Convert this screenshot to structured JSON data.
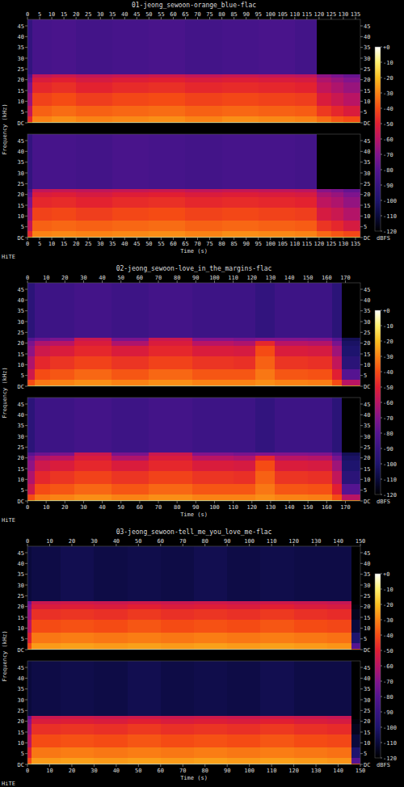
{
  "chart_data": [
    {
      "type": "spectrogram",
      "title": "01-jeong_sewoon-orange_blue-flac",
      "xlabel": "Time (s)",
      "ylabel": "Frequency (kHz)",
      "annotations": [
        "HiTE"
      ],
      "xlim": [
        0,
        137
      ],
      "xticks": [
        0,
        5,
        10,
        15,
        20,
        25,
        30,
        35,
        40,
        45,
        50,
        55,
        60,
        65,
        70,
        75,
        80,
        85,
        90,
        95,
        100,
        105,
        110,
        115,
        120,
        125,
        130,
        135
      ],
      "ylim": [
        0,
        48
      ],
      "yticks": [
        {
          "value": 0,
          "label": "DC"
        },
        5,
        10,
        15,
        20,
        25,
        30,
        35,
        40,
        45
      ],
      "colorbar": {
        "lim": [
          -120,
          0
        ],
        "ticks": [
          {
            "value": 0,
            "label": "+0"
          },
          -10,
          -20,
          -30,
          -40,
          -50,
          -60,
          -70,
          -80,
          -90,
          -100,
          -110,
          -120
        ],
        "label": "dBFS"
      },
      "x_bins": [
        0,
        2,
        10,
        20,
        35,
        50,
        65,
        80,
        95,
        110,
        119,
        125,
        130,
        137
      ],
      "y_bins": [
        0,
        0.5,
        3,
        8,
        14,
        19,
        21,
        22.5,
        48
      ],
      "cells": [
        [
          [
            -20,
            -48,
            -58,
            -66,
            -72,
            -78,
            -84,
            -92
          ],
          [
            -8,
            -30,
            -36,
            -42,
            -48,
            -52,
            -58,
            -85
          ],
          [
            -8,
            -28,
            -34,
            -40,
            -46,
            -50,
            -56,
            -84
          ],
          [
            -8,
            -30,
            -36,
            -43,
            -49,
            -53,
            -58,
            -86
          ],
          [
            -7,
            -29,
            -35,
            -41,
            -47,
            -51,
            -57,
            -85
          ],
          [
            -8,
            -28,
            -34,
            -40,
            -46,
            -50,
            -56,
            -84
          ],
          [
            -8,
            -30,
            -36,
            -42,
            -48,
            -52,
            -58,
            -86
          ],
          [
            -7,
            -28,
            -35,
            -41,
            -47,
            -51,
            -57,
            -85
          ],
          [
            -8,
            -29,
            -36,
            -42,
            -48,
            -52,
            -58,
            -84
          ],
          [
            -8,
            -30,
            -37,
            -43,
            -49,
            -53,
            -59,
            -86
          ],
          [
            -12,
            -34,
            -44,
            -52,
            -58,
            -62,
            -68,
            -120
          ],
          [
            -14,
            -38,
            -48,
            -56,
            -62,
            -66,
            -72,
            -120
          ],
          [
            -16,
            -40,
            -52,
            -60,
            -66,
            -70,
            -76,
            -120
          ]
        ],
        [
          [
            -20,
            -48,
            -58,
            -66,
            -72,
            -78,
            -84,
            -92
          ],
          [
            -8,
            -30,
            -36,
            -42,
            -48,
            -52,
            -58,
            -85
          ],
          [
            -8,
            -29,
            -35,
            -41,
            -47,
            -51,
            -57,
            -85
          ],
          [
            -8,
            -30,
            -36,
            -43,
            -49,
            -53,
            -58,
            -86
          ],
          [
            -7,
            -29,
            -35,
            -41,
            -47,
            -51,
            -57,
            -84
          ],
          [
            -8,
            -28,
            -34,
            -40,
            -46,
            -50,
            -56,
            -85
          ],
          [
            -8,
            -30,
            -36,
            -42,
            -48,
            -52,
            -58,
            -86
          ],
          [
            -7,
            -28,
            -35,
            -41,
            -47,
            -51,
            -57,
            -85
          ],
          [
            -8,
            -29,
            -36,
            -42,
            -48,
            -52,
            -58,
            -85
          ],
          [
            -8,
            -30,
            -37,
            -43,
            -49,
            -53,
            -59,
            -86
          ],
          [
            -12,
            -35,
            -45,
            -53,
            -59,
            -63,
            -69,
            -120
          ],
          [
            -14,
            -38,
            -48,
            -56,
            -62,
            -66,
            -72,
            -120
          ],
          [
            -16,
            -41,
            -53,
            -61,
            -67,
            -71,
            -77,
            -120
          ]
        ]
      ]
    },
    {
      "type": "spectrogram",
      "title": "02-jeong_sewoon-love_in_the_margins-flac",
      "xlabel": "Time (s)",
      "ylabel": "Frequency (kHz)",
      "annotations": [
        "HiTE"
      ],
      "xlim": [
        0,
        178
      ],
      "xticks": [
        0,
        10,
        20,
        30,
        40,
        50,
        60,
        70,
        80,
        90,
        100,
        110,
        120,
        130,
        140,
        150,
        160,
        170
      ],
      "ylim": [
        0,
        48
      ],
      "yticks": [
        {
          "value": 0,
          "label": "DC"
        },
        5,
        10,
        15,
        20,
        25,
        30,
        35,
        40,
        45
      ],
      "colorbar": {
        "lim": [
          -120,
          0
        ],
        "ticks": [
          {
            "value": 0,
            "label": "+0"
          },
          -10,
          -20,
          -30,
          -40,
          -50,
          -60,
          -70,
          -80,
          -90,
          -100,
          -110,
          -120
        ],
        "label": "dBFS"
      },
      "x_bins": [
        0,
        4,
        12,
        25,
        45,
        65,
        88,
        110,
        122,
        132,
        150,
        163,
        168,
        178
      ],
      "y_bins": [
        0,
        0.5,
        3,
        8,
        14,
        19,
        21,
        22.5,
        48
      ],
      "cells": [
        [
          [
            -15,
            -40,
            -55,
            -62,
            -68,
            -72,
            -80,
            -95
          ],
          [
            -10,
            -32,
            -40,
            -48,
            -55,
            -62,
            -75,
            -88
          ],
          [
            -8,
            -30,
            -38,
            -45,
            -52,
            -60,
            -72,
            -88
          ],
          [
            -8,
            -28,
            -35,
            -42,
            -48,
            -52,
            -56,
            -86
          ],
          [
            -8,
            -30,
            -38,
            -45,
            -52,
            -62,
            -72,
            -88
          ],
          [
            -8,
            -28,
            -35,
            -42,
            -48,
            -52,
            -56,
            -86
          ],
          [
            -8,
            -30,
            -38,
            -45,
            -52,
            -60,
            -70,
            -88
          ],
          [
            -8,
            -30,
            -38,
            -46,
            -53,
            -62,
            -72,
            -88
          ],
          [
            -6,
            -28,
            -32,
            -36,
            -40,
            -48,
            -70,
            -92
          ],
          [
            -8,
            -30,
            -38,
            -45,
            -52,
            -60,
            -70,
            -88
          ],
          [
            -8,
            -31,
            -39,
            -46,
            -53,
            -61,
            -71,
            -88
          ],
          [
            -12,
            -40,
            -50,
            -58,
            -65,
            -72,
            -80,
            -95
          ],
          [
            -25,
            -60,
            -80,
            -95,
            -100,
            -102,
            -105,
            -120
          ]
        ],
        [
          [
            -15,
            -40,
            -55,
            -62,
            -68,
            -72,
            -80,
            -95
          ],
          [
            -10,
            -32,
            -40,
            -48,
            -55,
            -62,
            -75,
            -88
          ],
          [
            -8,
            -30,
            -38,
            -45,
            -52,
            -60,
            -72,
            -88
          ],
          [
            -8,
            -28,
            -35,
            -42,
            -48,
            -52,
            -56,
            -86
          ],
          [
            -8,
            -30,
            -38,
            -45,
            -52,
            -62,
            -72,
            -88
          ],
          [
            -8,
            -28,
            -35,
            -42,
            -48,
            -52,
            -56,
            -86
          ],
          [
            -8,
            -30,
            -38,
            -45,
            -52,
            -60,
            -70,
            -88
          ],
          [
            -8,
            -30,
            -38,
            -46,
            -53,
            -62,
            -72,
            -88
          ],
          [
            -6,
            -28,
            -32,
            -36,
            -40,
            -48,
            -70,
            -92
          ],
          [
            -8,
            -30,
            -38,
            -45,
            -52,
            -60,
            -70,
            -88
          ],
          [
            -8,
            -31,
            -39,
            -46,
            -53,
            -61,
            -71,
            -88
          ],
          [
            -12,
            -40,
            -50,
            -58,
            -65,
            -72,
            -80,
            -95
          ],
          [
            -25,
            -60,
            -80,
            -95,
            -100,
            -102,
            -105,
            -120
          ]
        ]
      ]
    },
    {
      "type": "spectrogram",
      "title": "03-jeong_sewoon-tell_me_you_love_me-flac",
      "xlabel": "Time (s)",
      "ylabel": "Frequency (kHz)",
      "annotations": [
        "HiTE"
      ],
      "xlim": [
        0,
        150
      ],
      "xticks": [
        0,
        10,
        20,
        30,
        40,
        50,
        60,
        70,
        80,
        90,
        100,
        110,
        120,
        130,
        140,
        150
      ],
      "ylim": [
        0,
        48
      ],
      "yticks": [
        {
          "value": 0,
          "label": "DC"
        },
        5,
        10,
        15,
        20,
        25,
        30,
        35,
        40,
        45
      ],
      "colorbar": {
        "lim": [
          -120,
          0
        ],
        "ticks": [
          {
            "value": 0,
            "label": "+0"
          },
          -10,
          -20,
          -30,
          -40,
          -50,
          -60,
          -70,
          -80,
          -90,
          -100,
          -110,
          -120
        ],
        "label": "dBFS"
      },
      "x_bins": [
        0,
        2,
        15,
        30,
        45,
        60,
        75,
        90,
        105,
        120,
        135,
        146,
        150
      ],
      "y_bins": [
        0,
        0.5,
        3,
        8,
        14,
        19,
        21,
        22.5,
        48
      ],
      "cells": [
        [
          [
            -15,
            -40,
            -50,
            -60,
            -66,
            -70,
            -76,
            -110
          ],
          [
            -6,
            -26,
            -32,
            -40,
            -46,
            -52,
            -56,
            -108
          ],
          [
            -6,
            -25,
            -31,
            -39,
            -45,
            -51,
            -55,
            -106
          ],
          [
            -6,
            -26,
            -32,
            -40,
            -46,
            -52,
            -56,
            -108
          ],
          [
            -5,
            -25,
            -31,
            -38,
            -44,
            -50,
            -55,
            -107
          ],
          [
            -6,
            -26,
            -32,
            -40,
            -46,
            -52,
            -56,
            -108
          ],
          [
            -6,
            -25,
            -31,
            -39,
            -45,
            -51,
            -55,
            -106
          ],
          [
            -6,
            -26,
            -32,
            -40,
            -46,
            -52,
            -56,
            -108
          ],
          [
            -5,
            -25,
            -31,
            -38,
            -44,
            -50,
            -55,
            -107
          ],
          [
            -6,
            -26,
            -32,
            -40,
            -46,
            -52,
            -56,
            -108
          ],
          [
            -6,
            -27,
            -33,
            -41,
            -47,
            -53,
            -57,
            -108
          ],
          [
            -40,
            -80,
            -100,
            -110,
            -115,
            -118,
            -120,
            -120
          ]
        ],
        [
          [
            -15,
            -40,
            -50,
            -60,
            -66,
            -70,
            -76,
            -110
          ],
          [
            -6,
            -26,
            -32,
            -40,
            -46,
            -52,
            -56,
            -108
          ],
          [
            -6,
            -25,
            -31,
            -39,
            -45,
            -51,
            -55,
            -107
          ],
          [
            -6,
            -26,
            -32,
            -40,
            -46,
            -52,
            -56,
            -108
          ],
          [
            -5,
            -25,
            -31,
            -38,
            -44,
            -50,
            -55,
            -106
          ],
          [
            -6,
            -26,
            -32,
            -40,
            -46,
            -52,
            -56,
            -108
          ],
          [
            -6,
            -25,
            -31,
            -39,
            -45,
            -51,
            -55,
            -107
          ],
          [
            -6,
            -26,
            -32,
            -40,
            -46,
            -52,
            -56,
            -108
          ],
          [
            -5,
            -25,
            -31,
            -38,
            -44,
            -50,
            -55,
            -106
          ],
          [
            -6,
            -26,
            -32,
            -40,
            -46,
            -52,
            -56,
            -108
          ],
          [
            -6,
            -27,
            -33,
            -41,
            -47,
            -53,
            -57,
            -108
          ],
          [
            -40,
            -80,
            -100,
            -110,
            -115,
            -118,
            -120,
            -120
          ]
        ]
      ]
    }
  ]
}
